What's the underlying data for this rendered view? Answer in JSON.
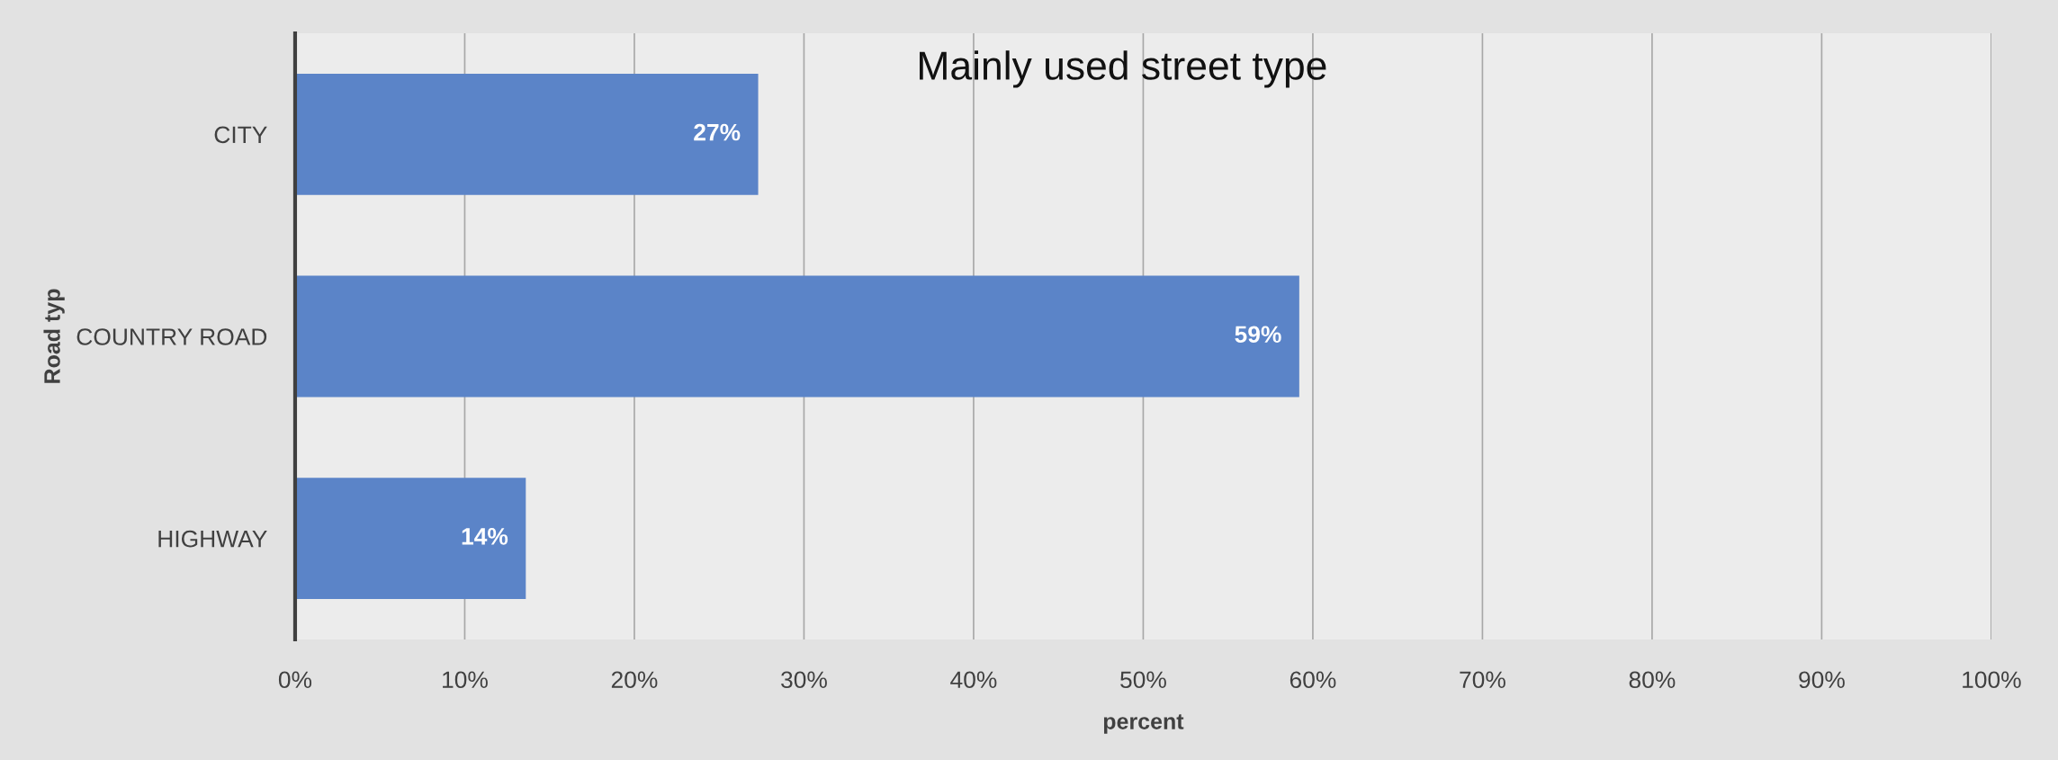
{
  "chart_data": {
    "type": "bar",
    "orientation": "horizontal",
    "title": "Mainly used street type",
    "xlabel": "percent",
    "ylabel": "Road typ",
    "categories": [
      "CITY",
      "COUNTRY ROAD",
      "HIGHWAY"
    ],
    "values": [
      27.3,
      59.2,
      13.6
    ],
    "value_labels": [
      "27%",
      "59%",
      "14%"
    ],
    "color": "#5b84c8",
    "xlim": [
      0,
      100
    ],
    "xticks": [
      {
        "value": 0,
        "label": "0%"
      },
      {
        "value": 10,
        "label": "10%"
      },
      {
        "value": 20,
        "label": "20%"
      },
      {
        "value": 30,
        "label": "30%"
      },
      {
        "value": 40,
        "label": "40%"
      },
      {
        "value": 50,
        "label": "50%"
      },
      {
        "value": 60,
        "label": "60%"
      },
      {
        "value": 70,
        "label": "70%"
      },
      {
        "value": 80,
        "label": "80%"
      },
      {
        "value": 90,
        "label": "90%"
      },
      {
        "value": 100,
        "label": "100%"
      }
    ],
    "grid": "x"
  }
}
